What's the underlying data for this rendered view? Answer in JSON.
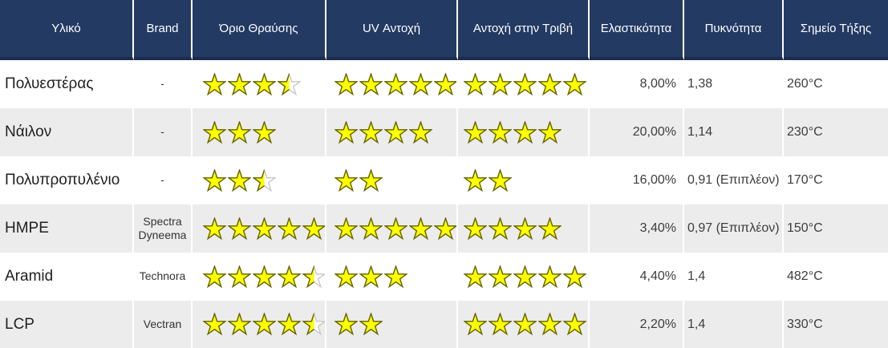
{
  "header": {
    "columns": [
      "Υλικό",
      "Brand",
      "Όριο Θραύσης",
      "UV Αντοχή",
      "Αντοχή στην Τριβή",
      "Ελαστικότητα",
      "Πυκνότητα",
      "Σημείο Τήξης"
    ]
  },
  "rows": [
    {
      "material": "Πολυεστέρας",
      "brand": "-",
      "breaking_strength_stars": 3.5,
      "uv_resistance_stars": 5,
      "abrasion_resistance_stars": 5,
      "elasticity": "8,00%",
      "density": "1,38",
      "melting_point": "260°C"
    },
    {
      "material": "Νάιλον",
      "brand": "-",
      "breaking_strength_stars": 3,
      "uv_resistance_stars": 4,
      "abrasion_resistance_stars": 4,
      "elasticity": "20,00%",
      "density": "1,14",
      "melting_point": "230°C"
    },
    {
      "material": "Πολυπροπυλένιο",
      "brand": "-",
      "breaking_strength_stars": 2.5,
      "uv_resistance_stars": 2,
      "abrasion_resistance_stars": 2,
      "elasticity": "16,00%",
      "density": "0,91 (Επιπλέον)",
      "melting_point": "170°C"
    },
    {
      "material": "HMPE",
      "brand": "Spectra Dyneema",
      "breaking_strength_stars": 5,
      "uv_resistance_stars": 5,
      "abrasion_resistance_stars": 4,
      "elasticity": "3,40%",
      "density": "0,97 (Επιπλέον)",
      "melting_point": "150°C"
    },
    {
      "material": "Aramid",
      "brand": "Technora",
      "breaking_strength_stars": 4.5,
      "uv_resistance_stars": 3,
      "abrasion_resistance_stars": 5,
      "elasticity": "4,40%",
      "density": "1,4",
      "melting_point": "482°C"
    },
    {
      "material": "LCP",
      "brand": "Vectran",
      "breaking_strength_stars": 4.5,
      "uv_resistance_stars": 2,
      "abrasion_resistance_stars": 5,
      "elasticity": "2,20%",
      "density": "1,4",
      "melting_point": "330°C"
    }
  ],
  "colors": {
    "header_bg": "#233a63",
    "header_border": "#1c2c4d",
    "header_text": "#ffffff",
    "row_alt_bg": "#ececec",
    "star_fill": "#ffff00",
    "star_stroke": "#666600",
    "star_empty_fill": "#ffffff",
    "star_empty_stroke": "#c9c9c9"
  },
  "icons": {
    "full_star": "star-icon",
    "half_star": "star-half-icon"
  }
}
